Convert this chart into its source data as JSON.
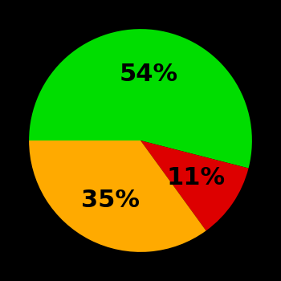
{
  "slices": [
    54,
    11,
    35
  ],
  "colors": [
    "#00dd00",
    "#dd0000",
    "#ffaa00"
  ],
  "labels": [
    "54%",
    "11%",
    "35%"
  ],
  "background_color": "#000000",
  "text_color": "#000000",
  "font_size": 22,
  "font_weight": "bold",
  "startangle": 180,
  "counterclock": false,
  "label_r": 0.6
}
